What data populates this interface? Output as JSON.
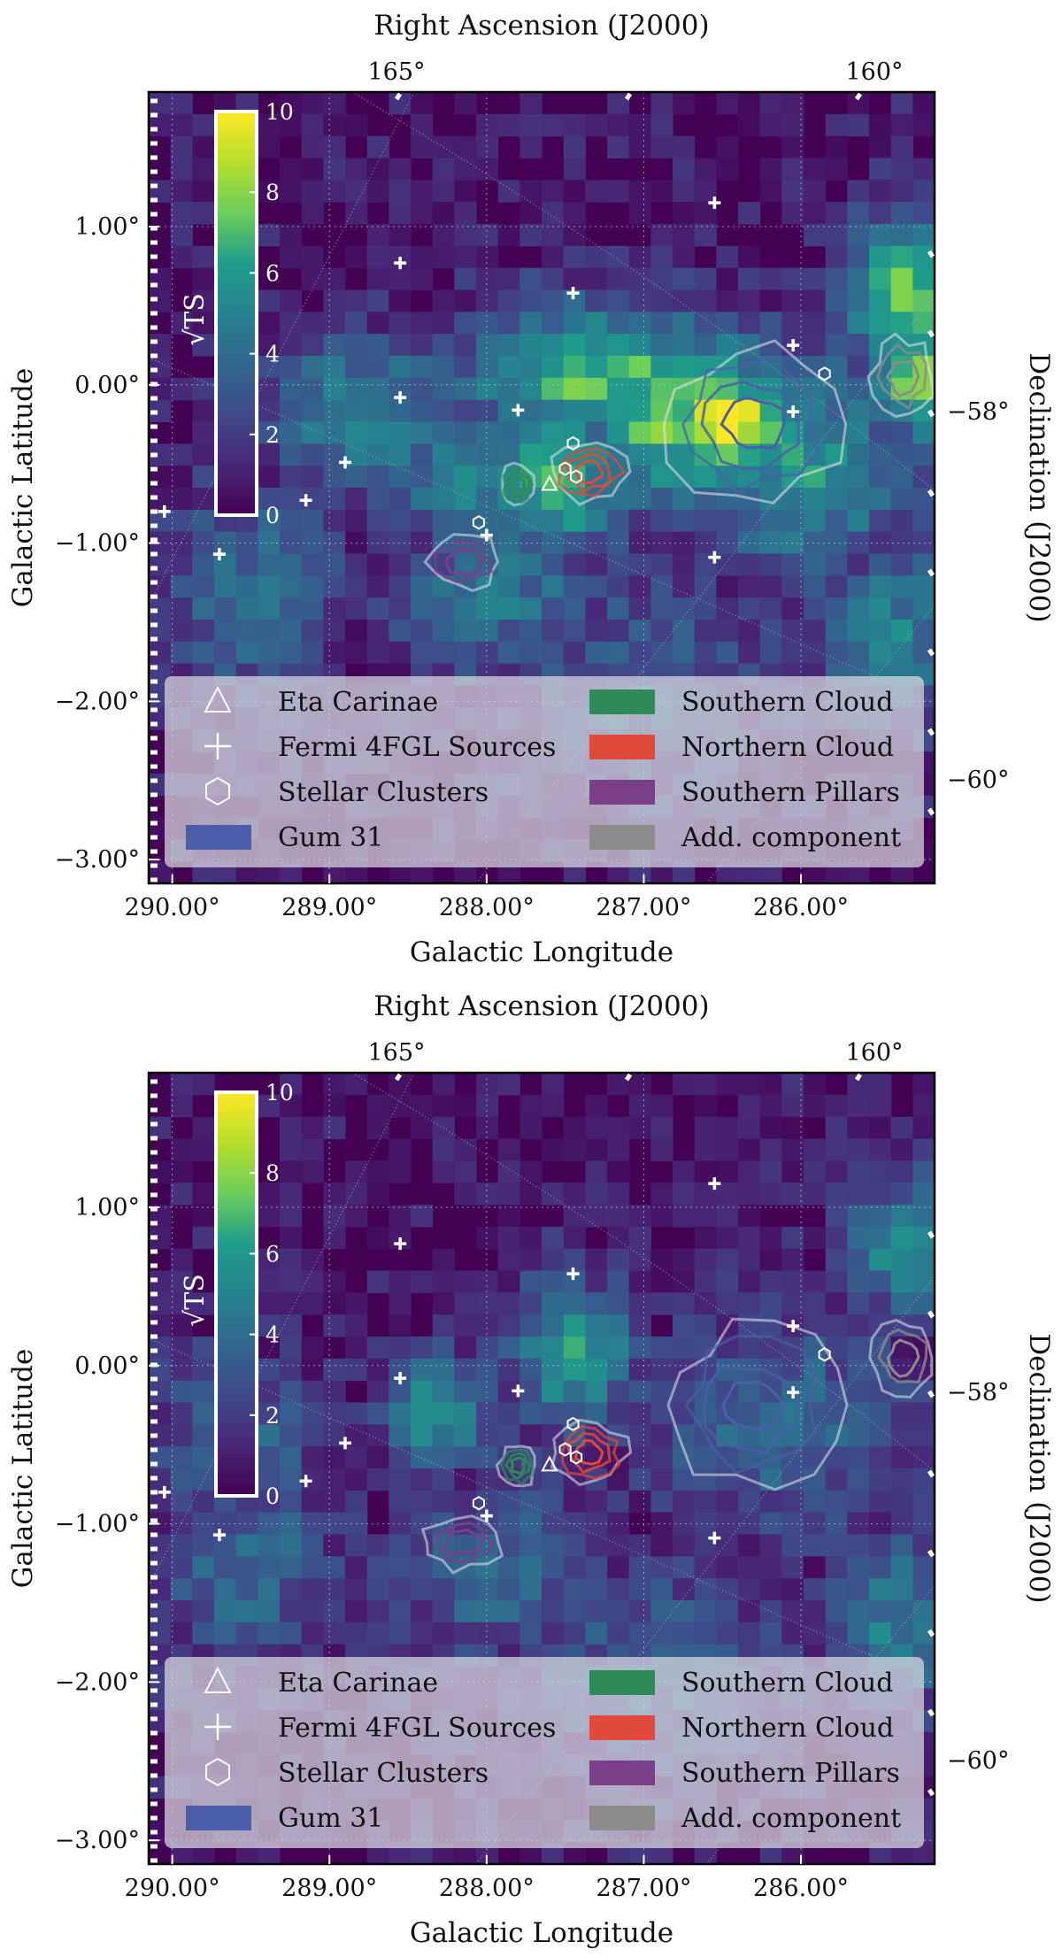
{
  "chart_data": [
    {
      "type": "heatmap",
      "panel": "top",
      "xlabel": "Galactic Longitude",
      "ylabel": "Galactic Latitude",
      "top_xlabel": "Right Ascension (J2000)",
      "right_ylabel": "Declination (J2000)",
      "xticks": [
        "290.00°",
        "289.00°",
        "288.00°",
        "287.00°",
        "286.00°"
      ],
      "yticks": [
        "1.00°",
        "0.00°",
        "−1.00°",
        "−2.00°",
        "−3.00°"
      ],
      "ra_ticks": [
        "165°",
        "160°"
      ],
      "dec_ticks": [
        "−58°",
        "−60°"
      ],
      "xlim": [
        290.15,
        285.15
      ],
      "ylim": [
        -3.15,
        1.85
      ],
      "colorbar": {
        "label": "√TS",
        "ticks": [
          "0",
          "2",
          "4",
          "6",
          "8",
          "10"
        ],
        "range": [
          0,
          10
        ],
        "colormap": "viridis"
      },
      "hotspots": [
        {
          "l": 286.5,
          "b": -0.25,
          "sqrt_ts": 9.5,
          "sl": 0.35,
          "sb": 0.25
        },
        {
          "l": 286.75,
          "b": -0.2,
          "sqrt_ts": 7.0,
          "sl": 0.5,
          "sb": 0.4
        },
        {
          "l": 287.3,
          "b": 0.05,
          "sqrt_ts": 6.5,
          "sl": 0.6,
          "sb": 0.35
        },
        {
          "l": 287.55,
          "b": -0.6,
          "sqrt_ts": 6.0,
          "sl": 0.35,
          "sb": 0.35
        },
        {
          "l": 288.15,
          "b": -0.6,
          "sqrt_ts": 5.0,
          "sl": 0.3,
          "sb": 0.3
        },
        {
          "l": 288.8,
          "b": -0.2,
          "sqrt_ts": 4.5,
          "sl": 0.45,
          "sb": 0.35
        },
        {
          "l": 285.3,
          "b": 0.55,
          "sqrt_ts": 6.5,
          "sl": 0.3,
          "sb": 0.4
        },
        {
          "l": 285.2,
          "b": 0.05,
          "sqrt_ts": 7.0,
          "sl": 0.3,
          "sb": 0.3
        },
        {
          "l": 286.0,
          "b": -0.5,
          "sqrt_ts": 5.0,
          "sl": 0.5,
          "sb": 0.5
        },
        {
          "l": 287.9,
          "b": -1.3,
          "sqrt_ts": 3.5,
          "sl": 0.5,
          "sb": 0.4
        },
        {
          "l": 289.5,
          "b": -1.3,
          "sqrt_ts": 3.2,
          "sl": 0.4,
          "sb": 0.5
        },
        {
          "l": 285.4,
          "b": -1.6,
          "sqrt_ts": 4.2,
          "sl": 0.35,
          "sb": 0.4
        },
        {
          "l": 287.0,
          "b": -1.9,
          "sqrt_ts": 2.8,
          "sl": 0.6,
          "sb": 0.5
        }
      ],
      "markers": {
        "eta_carinae": [
          {
            "l": 287.6,
            "b": -0.63
          }
        ],
        "fermi_4fgl": [
          {
            "l": 288.55,
            "b": 0.77
          },
          {
            "l": 287.45,
            "b": 0.58
          },
          {
            "l": 286.55,
            "b": 1.15
          },
          {
            "l": 288.55,
            "b": -0.08
          },
          {
            "l": 287.8,
            "b": -0.16
          },
          {
            "l": 286.05,
            "b": 0.25
          },
          {
            "l": 286.05,
            "b": -0.17
          },
          {
            "l": 288.9,
            "b": -0.49
          },
          {
            "l": 289.15,
            "b": -0.73
          },
          {
            "l": 289.7,
            "b": -1.07
          },
          {
            "l": 288.0,
            "b": -0.95
          },
          {
            "l": 286.55,
            "b": -1.09
          },
          {
            "l": 290.05,
            "b": -0.8
          }
        ],
        "stellar_clusters": [
          {
            "l": 287.45,
            "b": -0.37
          },
          {
            "l": 287.5,
            "b": -0.53
          },
          {
            "l": 287.43,
            "b": -0.58
          },
          {
            "l": 288.05,
            "b": -0.87
          },
          {
            "l": 285.85,
            "b": 0.07
          }
        ]
      },
      "components": [
        {
          "name": "Southern Cloud",
          "color": "#2e8b57",
          "l": 287.8,
          "b": -0.63,
          "rl": 0.12,
          "rb": 0.14,
          "levels": 4
        },
        {
          "name": "Northern Cloud",
          "color": "#e04a3a",
          "l": 287.35,
          "b": -0.55,
          "rl": 0.25,
          "rb": 0.2,
          "levels": 4
        },
        {
          "name": "Southern Pillars",
          "color": "#7b3f8a",
          "l": 288.15,
          "b": -1.12,
          "rl": 0.25,
          "rb": 0.17,
          "levels": 3
        },
        {
          "name": "Gum 31",
          "color": "#4a5fa8",
          "l": 286.3,
          "b": -0.25,
          "rl": 0.55,
          "rb": 0.5,
          "levels": 4
        },
        {
          "name": "Add. component",
          "color": "#8c8c8c",
          "l": 285.35,
          "b": 0.05,
          "rl": 0.2,
          "rb": 0.25,
          "levels": 3
        }
      ],
      "legend": {
        "placement": "bottom",
        "items": [
          {
            "label": "Eta Carinae",
            "icon": "triangle-icon"
          },
          {
            "label": "Fermi 4FGL Sources",
            "icon": "plus-icon"
          },
          {
            "label": "Stellar Clusters",
            "icon": "hexagon-icon"
          },
          {
            "label": "Gum 31",
            "color": "#4a5fa8"
          },
          {
            "label": "Southern Cloud",
            "color": "#2e8b57"
          },
          {
            "label": "Northern Cloud",
            "color": "#e04a3a"
          },
          {
            "label": "Southern Pillars",
            "color": "#7b3f8a"
          },
          {
            "label": "Add. component",
            "color": "#8c8c8c"
          }
        ]
      }
    },
    {
      "type": "heatmap",
      "panel": "bottom",
      "xlabel": "Galactic Longitude",
      "ylabel": "Galactic Latitude",
      "top_xlabel": "Right Ascension (J2000)",
      "right_ylabel": "Declination (J2000)",
      "xticks": [
        "290.00°",
        "289.00°",
        "288.00°",
        "287.00°",
        "286.00°"
      ],
      "yticks": [
        "1.00°",
        "0.00°",
        "−1.00°",
        "−2.00°",
        "−3.00°"
      ],
      "ra_ticks": [
        "165°",
        "160°"
      ],
      "dec_ticks": [
        "−58°",
        "−60°"
      ],
      "xlim": [
        290.15,
        285.15
      ],
      "ylim": [
        -3.15,
        1.85
      ],
      "colorbar": {
        "label": "√TS",
        "ticks": [
          "0",
          "2",
          "4",
          "6",
          "8",
          "10"
        ],
        "range": [
          0,
          10
        ],
        "colormap": "viridis"
      },
      "hotspots": [
        {
          "l": 287.45,
          "b": 0.05,
          "sqrt_ts": 5.0,
          "sl": 0.3,
          "sb": 0.35
        },
        {
          "l": 288.3,
          "b": -0.3,
          "sqrt_ts": 5.2,
          "sl": 0.25,
          "sb": 0.25
        },
        {
          "l": 285.3,
          "b": 0.75,
          "sqrt_ts": 5.0,
          "sl": 0.3,
          "sb": 0.3
        },
        {
          "l": 286.1,
          "b": -0.35,
          "sqrt_ts": 3.2,
          "sl": 0.6,
          "sb": 0.5
        },
        {
          "l": 287.9,
          "b": -1.3,
          "sqrt_ts": 3.0,
          "sl": 0.5,
          "sb": 0.4
        },
        {
          "l": 289.5,
          "b": -1.3,
          "sqrt_ts": 3.0,
          "sl": 0.4,
          "sb": 0.5
        },
        {
          "l": 285.4,
          "b": -1.6,
          "sqrt_ts": 4.0,
          "sl": 0.3,
          "sb": 0.4
        },
        {
          "l": 286.9,
          "b": -1.9,
          "sqrt_ts": 2.6,
          "sl": 0.6,
          "sb": 0.5
        },
        {
          "l": 289.6,
          "b": -0.5,
          "sqrt_ts": 2.8,
          "sl": 0.4,
          "sb": 0.4
        }
      ],
      "markers": {
        "eta_carinae": [
          {
            "l": 287.6,
            "b": -0.63
          }
        ],
        "fermi_4fgl": [
          {
            "l": 288.55,
            "b": 0.77
          },
          {
            "l": 287.45,
            "b": 0.58
          },
          {
            "l": 286.55,
            "b": 1.15
          },
          {
            "l": 288.55,
            "b": -0.08
          },
          {
            "l": 287.8,
            "b": -0.16
          },
          {
            "l": 286.05,
            "b": 0.25
          },
          {
            "l": 286.05,
            "b": -0.17
          },
          {
            "l": 288.9,
            "b": -0.49
          },
          {
            "l": 289.15,
            "b": -0.73
          },
          {
            "l": 289.7,
            "b": -1.07
          },
          {
            "l": 288.0,
            "b": -0.95
          },
          {
            "l": 286.55,
            "b": -1.09
          },
          {
            "l": 290.05,
            "b": -0.8
          }
        ],
        "stellar_clusters": [
          {
            "l": 287.45,
            "b": -0.37
          },
          {
            "l": 287.5,
            "b": -0.53
          },
          {
            "l": 287.43,
            "b": -0.58
          },
          {
            "l": 288.05,
            "b": -0.87
          },
          {
            "l": 285.85,
            "b": 0.07
          }
        ]
      },
      "components": [
        {
          "name": "Southern Cloud",
          "color": "#2e8b57",
          "l": 287.8,
          "b": -0.63,
          "rl": 0.12,
          "rb": 0.14,
          "levels": 4
        },
        {
          "name": "Northern Cloud",
          "color": "#e04a3a",
          "l": 287.35,
          "b": -0.55,
          "rl": 0.25,
          "rb": 0.2,
          "levels": 4
        },
        {
          "name": "Southern Pillars",
          "color": "#7b3f8a",
          "l": 288.15,
          "b": -1.12,
          "rl": 0.25,
          "rb": 0.17,
          "levels": 3
        },
        {
          "name": "Gum 31",
          "color": "#4a5fa8",
          "l": 286.3,
          "b": -0.25,
          "rl": 0.55,
          "rb": 0.5,
          "levels": 4
        },
        {
          "name": "Add. component",
          "color": "#8c8c8c",
          "l": 285.35,
          "b": 0.05,
          "rl": 0.2,
          "rb": 0.25,
          "levels": 3
        }
      ],
      "legend": {
        "placement": "bottom",
        "items": [
          {
            "label": "Eta Carinae",
            "icon": "triangle-icon"
          },
          {
            "label": "Fermi 4FGL Sources",
            "icon": "plus-icon"
          },
          {
            "label": "Stellar Clusters",
            "icon": "hexagon-icon"
          },
          {
            "label": "Gum 31",
            "color": "#4a5fa8"
          },
          {
            "label": "Southern Cloud",
            "color": "#2e8b57"
          },
          {
            "label": "Northern Cloud",
            "color": "#e04a3a"
          },
          {
            "label": "Southern Pillars",
            "color": "#7b3f8a"
          },
          {
            "label": "Add. component",
            "color": "#8c8c8c"
          }
        ]
      }
    }
  ]
}
